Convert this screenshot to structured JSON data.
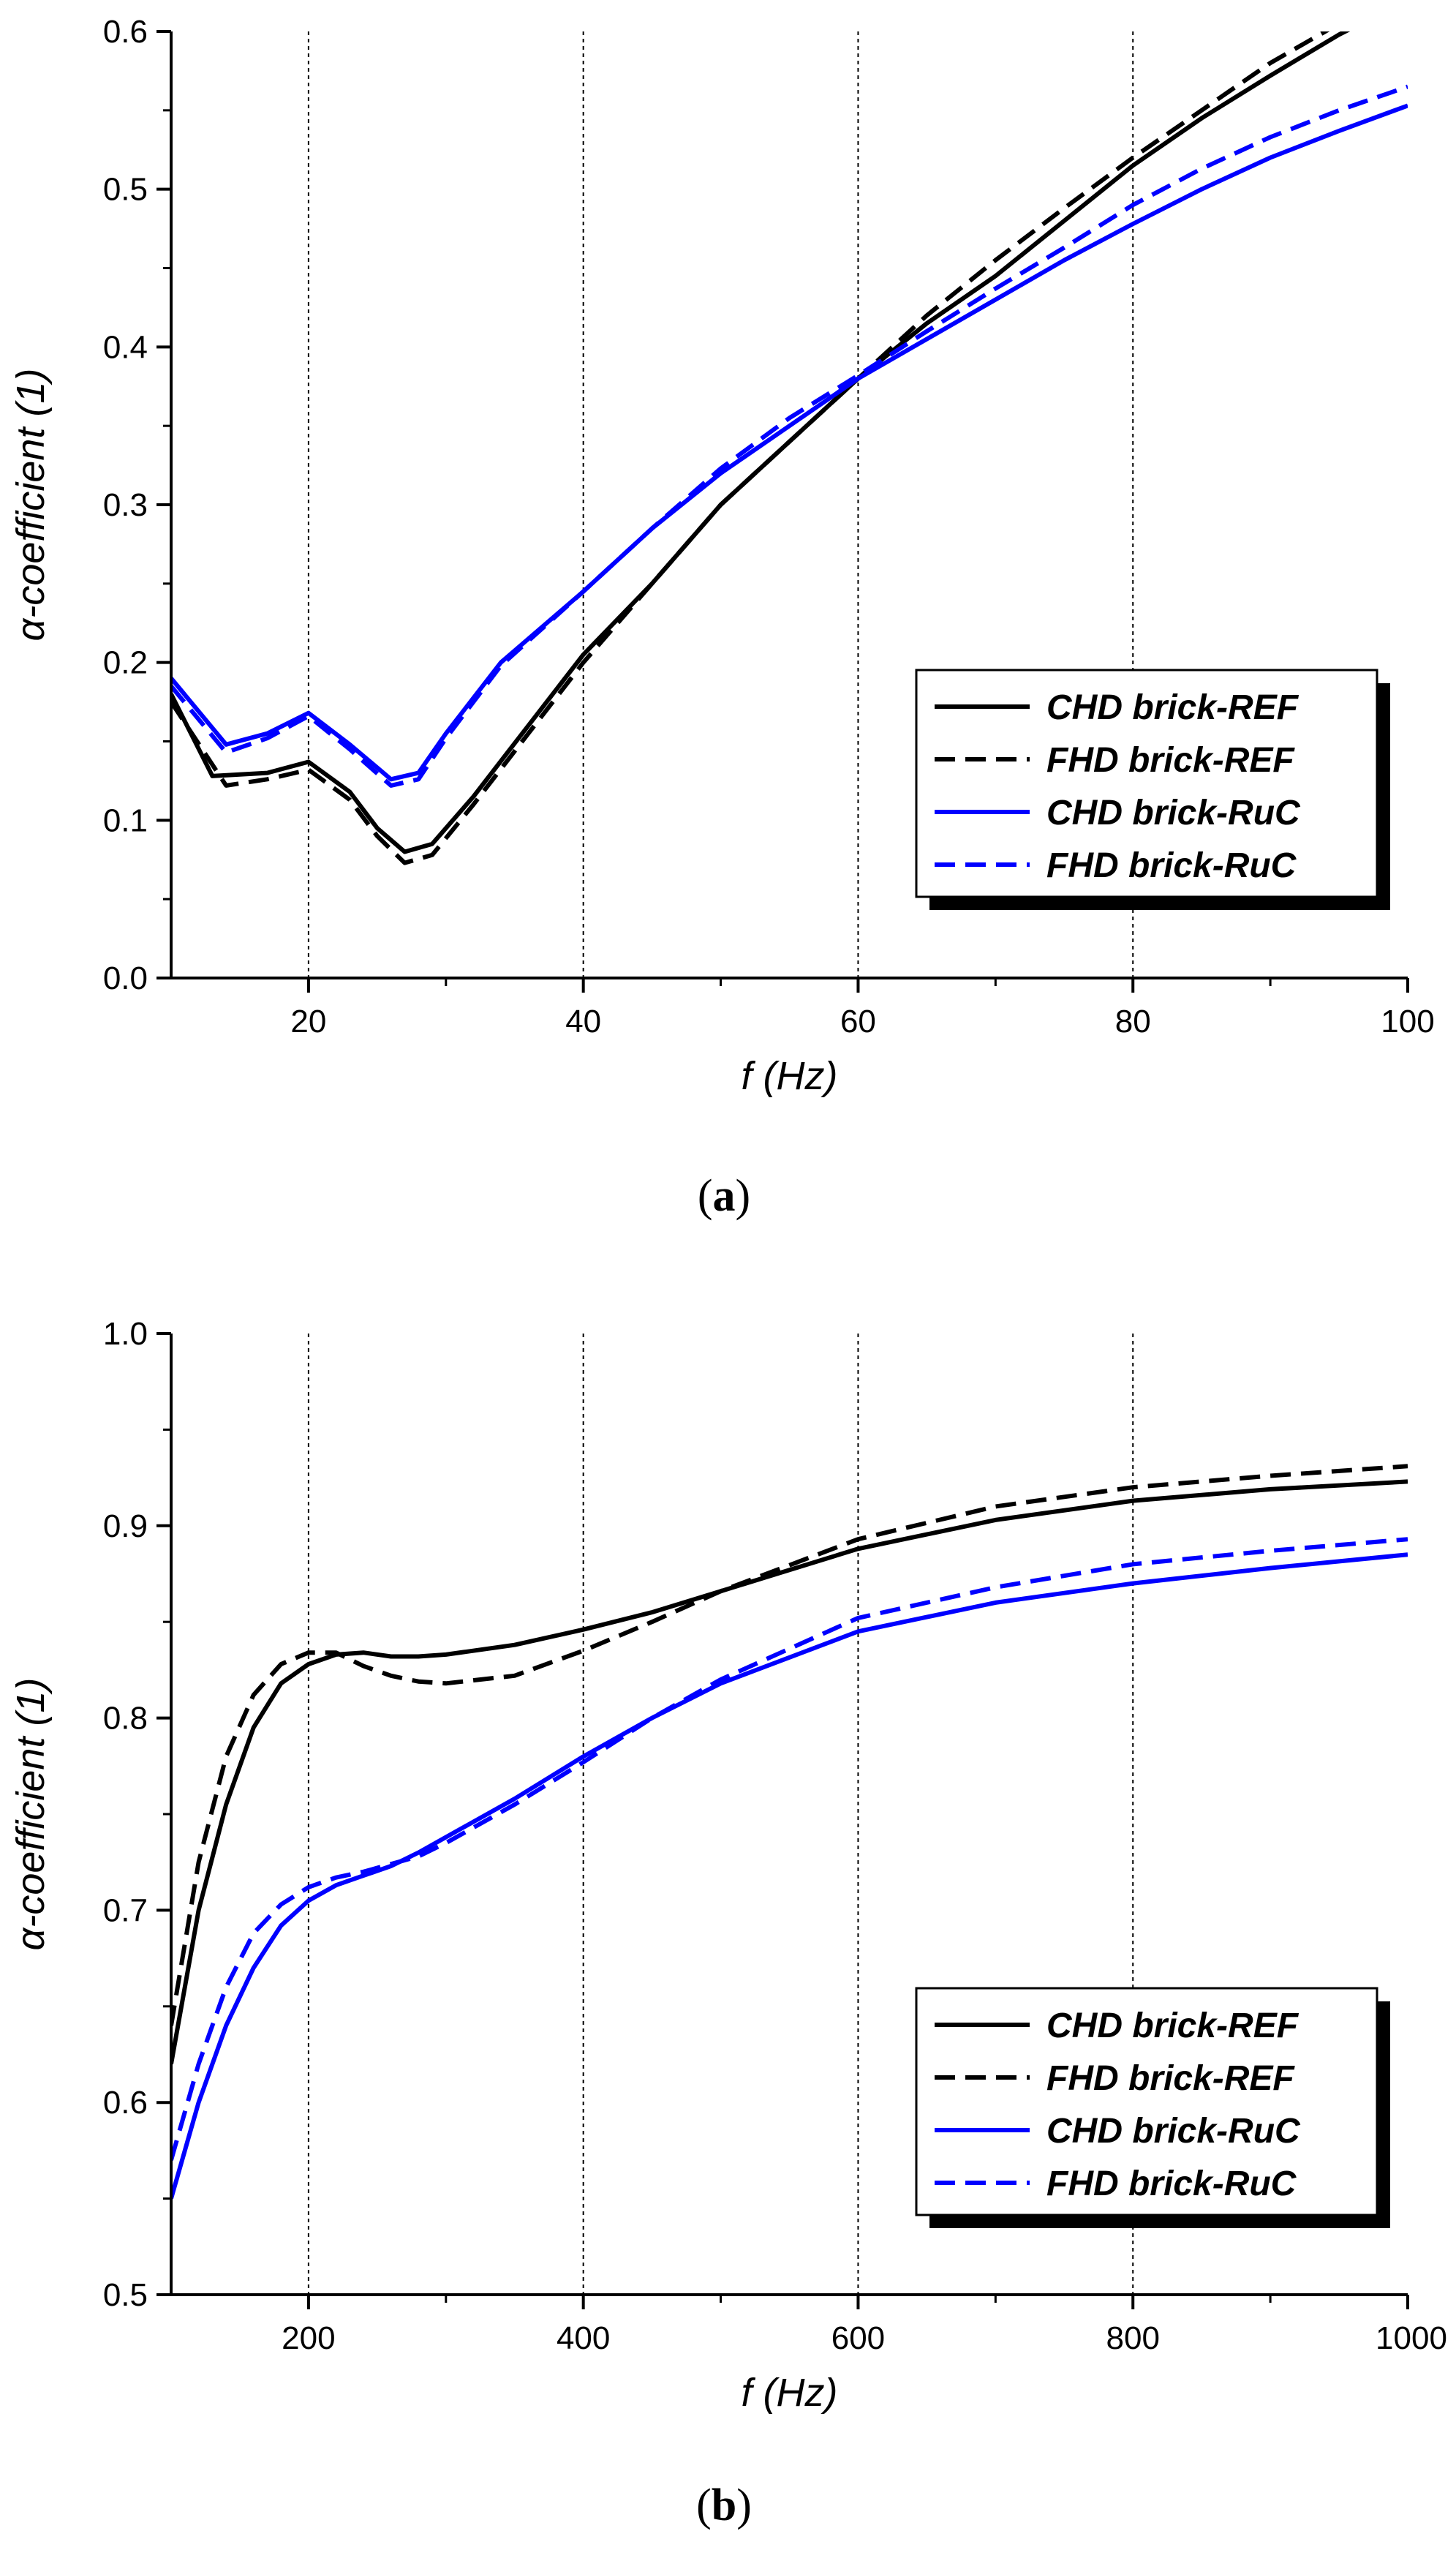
{
  "chart_data": [
    {
      "type": "line",
      "panel_label": "a",
      "xlabel": "f (Hz)",
      "ylabel": "α-coefficient (1)",
      "xlim": [
        10,
        100
      ],
      "ylim": [
        0,
        0.6
      ],
      "xticks": [
        20,
        40,
        60,
        80,
        100
      ],
      "yticks": [
        0.0,
        0.1,
        0.2,
        0.3,
        0.4,
        0.5,
        0.6
      ],
      "grid": "vertical dotted lines at major x ticks",
      "legend_position": "lower-right",
      "series": [
        {
          "name": "CHD brick-REF",
          "color": "#000000",
          "style": "solid",
          "x": [
            10,
            13,
            17,
            20,
            23,
            25,
            27,
            29,
            32,
            36,
            40,
            45,
            50,
            55,
            60,
            65,
            70,
            75,
            80,
            85,
            90,
            95,
            100
          ],
          "y": [
            0.18,
            0.128,
            0.13,
            0.137,
            0.118,
            0.095,
            0.08,
            0.085,
            0.115,
            0.16,
            0.205,
            0.25,
            0.3,
            0.34,
            0.38,
            0.415,
            0.445,
            0.48,
            0.515,
            0.545,
            0.572,
            0.598,
            0.62
          ]
        },
        {
          "name": "FHD brick-REF",
          "color": "#000000",
          "style": "dashed",
          "x": [
            10,
            14,
            17,
            20,
            23,
            25,
            27,
            29,
            32,
            36,
            40,
            45,
            50,
            55,
            60,
            65,
            70,
            75,
            80,
            85,
            90,
            95,
            100
          ],
          "y": [
            0.175,
            0.122,
            0.126,
            0.132,
            0.113,
            0.09,
            0.073,
            0.078,
            0.11,
            0.155,
            0.2,
            0.25,
            0.3,
            0.34,
            0.38,
            0.42,
            0.455,
            0.488,
            0.52,
            0.55,
            0.58,
            0.605,
            0.63
          ]
        },
        {
          "name": "CHD brick-RuC",
          "color": "#0000ff",
          "style": "solid",
          "x": [
            10,
            14,
            17,
            20,
            23,
            26,
            28,
            30,
            34,
            40,
            45,
            50,
            55,
            60,
            65,
            70,
            75,
            80,
            85,
            90,
            95,
            100
          ],
          "y": [
            0.19,
            0.148,
            0.155,
            0.168,
            0.148,
            0.126,
            0.13,
            0.155,
            0.2,
            0.245,
            0.285,
            0.32,
            0.35,
            0.38,
            0.405,
            0.43,
            0.455,
            0.478,
            0.5,
            0.52,
            0.537,
            0.553
          ]
        },
        {
          "name": "FHD brick-RuC",
          "color": "#0000ff",
          "style": "dashed",
          "x": [
            10,
            14,
            17,
            20,
            23,
            26,
            28,
            30,
            34,
            40,
            45,
            50,
            55,
            60,
            65,
            70,
            75,
            80,
            85,
            90,
            95,
            100
          ],
          "y": [
            0.185,
            0.143,
            0.152,
            0.166,
            0.145,
            0.122,
            0.126,
            0.152,
            0.198,
            0.245,
            0.285,
            0.323,
            0.355,
            0.382,
            0.41,
            0.437,
            0.463,
            0.49,
            0.513,
            0.533,
            0.55,
            0.565
          ]
        }
      ]
    },
    {
      "type": "line",
      "panel_label": "b",
      "xlabel": "f (Hz)",
      "ylabel": "α-coefficient (1)",
      "xlim": [
        100,
        1000
      ],
      "ylim": [
        0.5,
        1.0
      ],
      "xticks": [
        200,
        400,
        600,
        800,
        1000
      ],
      "yticks": [
        0.5,
        0.6,
        0.7,
        0.8,
        0.9,
        1.0
      ],
      "grid": "vertical dotted lines at major x ticks",
      "legend_position": "lower-right",
      "series": [
        {
          "name": "CHD brick-REF",
          "color": "#000000",
          "style": "solid",
          "x": [
            100,
            120,
            140,
            160,
            180,
            200,
            220,
            240,
            260,
            280,
            300,
            350,
            400,
            450,
            500,
            600,
            700,
            800,
            900,
            1000
          ],
          "y": [
            0.62,
            0.7,
            0.755,
            0.795,
            0.818,
            0.828,
            0.833,
            0.834,
            0.832,
            0.832,
            0.833,
            0.838,
            0.846,
            0.855,
            0.866,
            0.888,
            0.903,
            0.913,
            0.919,
            0.923
          ]
        },
        {
          "name": "FHD brick-REF",
          "color": "#000000",
          "style": "dashed",
          "x": [
            100,
            120,
            140,
            160,
            180,
            200,
            220,
            240,
            260,
            280,
            300,
            350,
            400,
            450,
            500,
            600,
            700,
            800,
            900,
            1000
          ],
          "y": [
            0.64,
            0.725,
            0.78,
            0.812,
            0.828,
            0.834,
            0.834,
            0.827,
            0.822,
            0.819,
            0.818,
            0.822,
            0.835,
            0.85,
            0.866,
            0.893,
            0.91,
            0.92,
            0.926,
            0.931
          ]
        },
        {
          "name": "CHD brick-RuC",
          "color": "#0000ff",
          "style": "solid",
          "x": [
            100,
            120,
            140,
            160,
            180,
            200,
            220,
            240,
            260,
            280,
            300,
            350,
            400,
            450,
            500,
            600,
            700,
            800,
            900,
            1000
          ],
          "y": [
            0.55,
            0.6,
            0.64,
            0.67,
            0.692,
            0.705,
            0.713,
            0.718,
            0.723,
            0.73,
            0.738,
            0.758,
            0.78,
            0.8,
            0.818,
            0.845,
            0.86,
            0.87,
            0.878,
            0.885
          ]
        },
        {
          "name": "FHD brick-RuC",
          "color": "#0000ff",
          "style": "dashed",
          "x": [
            100,
            120,
            140,
            160,
            180,
            200,
            220,
            240,
            260,
            280,
            300,
            350,
            400,
            450,
            500,
            600,
            700,
            800,
            900,
            1000
          ],
          "y": [
            0.57,
            0.62,
            0.66,
            0.688,
            0.703,
            0.712,
            0.717,
            0.72,
            0.724,
            0.728,
            0.735,
            0.755,
            0.777,
            0.8,
            0.82,
            0.852,
            0.868,
            0.88,
            0.887,
            0.893
          ]
        }
      ]
    }
  ]
}
